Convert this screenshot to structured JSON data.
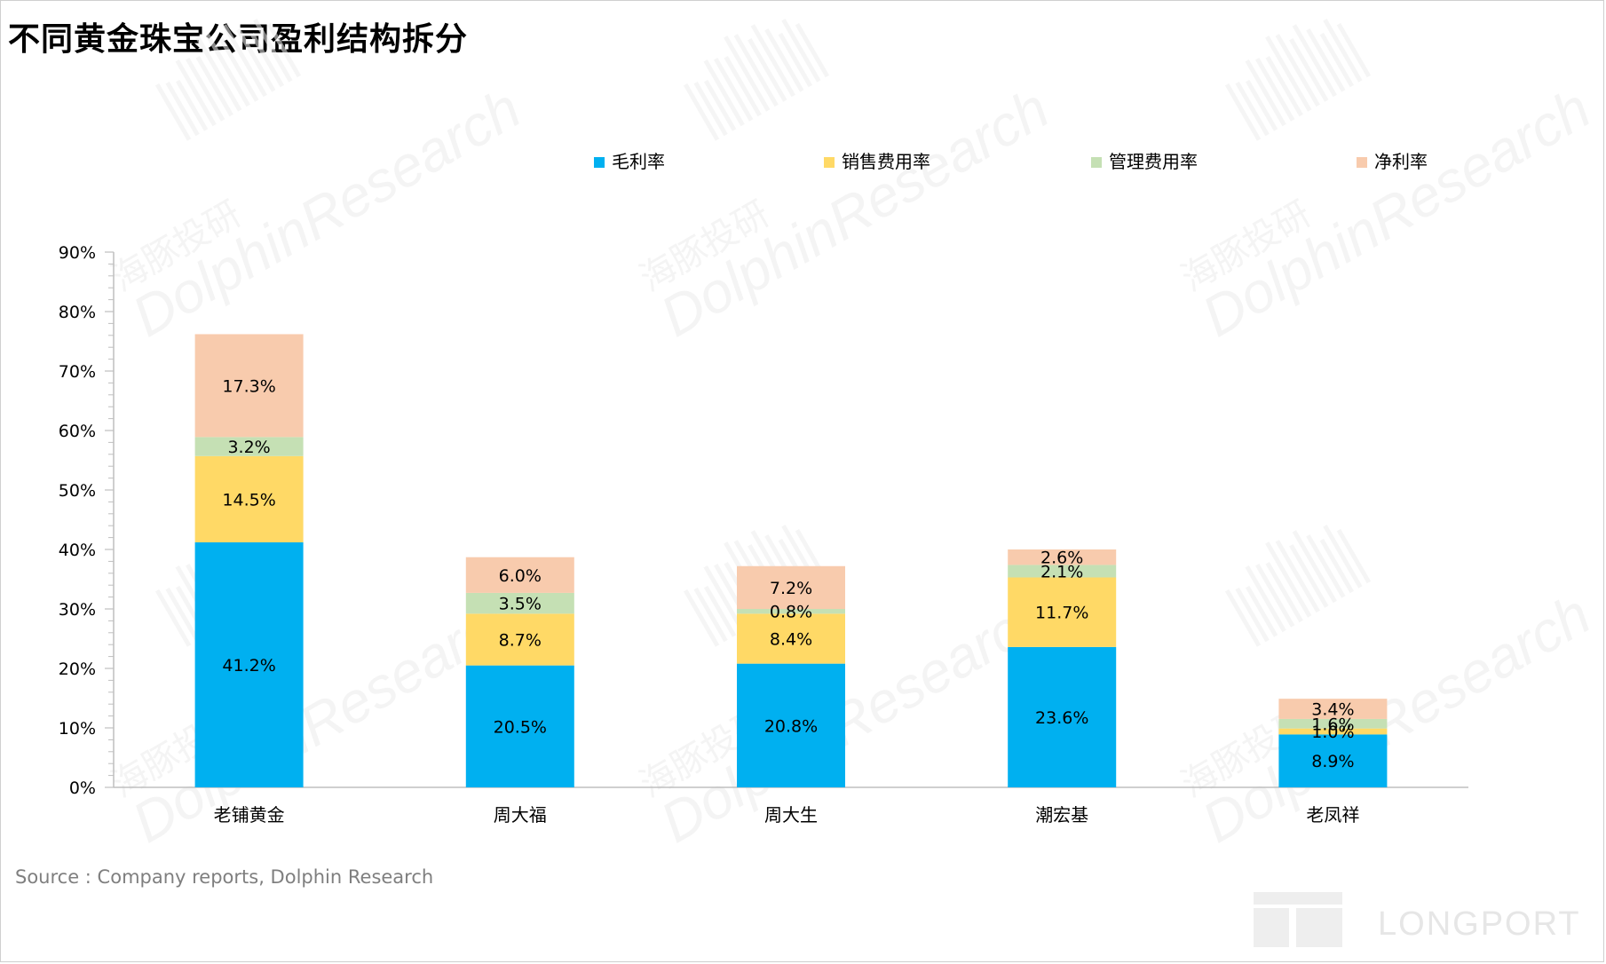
{
  "title": "不同黄金珠宝公司盈利结构拆分",
  "source": "Source : Company reports, Dolphin Research",
  "watermarks": {
    "brand_cn": "海豚投研",
    "brand_en": "DolphinResearch",
    "corner_logo_text": "LONGPORT"
  },
  "colors": {
    "gross_margin": "#00B0F0",
    "selling_expense": "#FFD966",
    "admin_expense": "#C5E0B4",
    "net_margin": "#F8CBAD",
    "axis": "#bfbfbf",
    "text": "#000000"
  },
  "chart_data": {
    "type": "bar",
    "stacked": true,
    "title": "",
    "xlabel": "",
    "ylabel": "",
    "ylim": [
      0,
      90
    ],
    "yticks": [
      "0%",
      "10%",
      "20%",
      "30%",
      "40%",
      "50%",
      "60%",
      "70%",
      "80%",
      "90%"
    ],
    "ytick_values": [
      0,
      10,
      20,
      30,
      40,
      50,
      60,
      70,
      80,
      90
    ],
    "grid": false,
    "legend_position": "top",
    "categories": [
      "老铺黄金",
      "周大福",
      "周大生",
      "潮宏基",
      "老凤祥"
    ],
    "series": [
      {
        "name": "毛利率",
        "color": "#00B0F0",
        "values": [
          41.2,
          20.5,
          20.8,
          23.6,
          8.9
        ],
        "labels": [
          "41.2%",
          "20.5%",
          "20.8%",
          "23.6%",
          "8.9%"
        ]
      },
      {
        "name": "销售费用率",
        "color": "#FFD966",
        "values": [
          14.5,
          8.7,
          8.4,
          11.7,
          1.0
        ],
        "labels": [
          "14.5%",
          "8.7%",
          "8.4%",
          "11.7%",
          "1.0%"
        ]
      },
      {
        "name": "管理费用率",
        "color": "#C5E0B4",
        "values": [
          3.2,
          3.5,
          0.8,
          2.1,
          1.6
        ],
        "labels": [
          "3.2%",
          "3.5%",
          "0.8%",
          "2.1%",
          "1.6%"
        ]
      },
      {
        "name": "净利率",
        "color": "#F8CBAD",
        "values": [
          17.3,
          6.0,
          7.2,
          2.6,
          3.4
        ],
        "labels": [
          "17.3%",
          "6.0%",
          "7.2%",
          "2.6%",
          "3.4%"
        ]
      }
    ]
  }
}
